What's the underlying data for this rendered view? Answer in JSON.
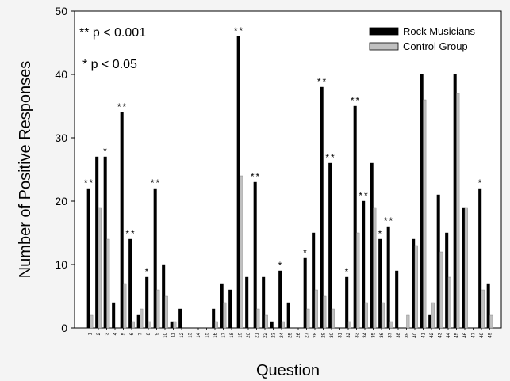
{
  "chart_data": {
    "type": "bar",
    "title": "",
    "xlabel": "Question",
    "ylabel": "Number of Positive Responses",
    "ylim": [
      0,
      50
    ],
    "yticks": [
      0,
      10,
      20,
      30,
      40,
      50
    ],
    "grid": false,
    "legend_position": "top-right",
    "categories": [
      "1",
      "2",
      "3",
      "4",
      "5",
      "6",
      "7",
      "8",
      "9",
      "10",
      "11",
      "12",
      "13",
      "14",
      "15",
      "16",
      "17",
      "18",
      "19",
      "20",
      "21",
      "22",
      "23",
      "24",
      "25",
      "26",
      "27",
      "28",
      "29",
      "30",
      "31",
      "32",
      "33",
      "34",
      "35",
      "36",
      "37",
      "38",
      "39",
      "40",
      "41",
      "42",
      "43",
      "44",
      "45",
      "46",
      "47",
      "48",
      "49"
    ],
    "series": [
      {
        "name": "Rock Musicians",
        "color": "#000000",
        "values": [
          22,
          27,
          27,
          4,
          34,
          14,
          2,
          8,
          22,
          10,
          1,
          3,
          0,
          0,
          0,
          3,
          7,
          6,
          46,
          8,
          23,
          8,
          1,
          9,
          4,
          0,
          11,
          15,
          38,
          26,
          0,
          8,
          35,
          20,
          26,
          14,
          16,
          9,
          0,
          14,
          40,
          2,
          21,
          15,
          40,
          19,
          0,
          22,
          7
        ]
      },
      {
        "name": "Control Group",
        "color": "#c0c0c0",
        "values": [
          2,
          19,
          14,
          0,
          7,
          1,
          3,
          1,
          6,
          5,
          1,
          0,
          0,
          0,
          0,
          1,
          4,
          0,
          24,
          0,
          3,
          2,
          0,
          1,
          0,
          0,
          3,
          6,
          5,
          3,
          0,
          1,
          15,
          4,
          19,
          4,
          1,
          0,
          2,
          13,
          36,
          4,
          12,
          8,
          37,
          19,
          0,
          6,
          2
        ]
      }
    ],
    "significance": [
      "**",
      "",
      "*",
      "",
      "**",
      "**",
      "",
      "*",
      "**",
      "",
      "",
      "",
      "",
      "",
      "",
      "",
      "",
      "",
      "**",
      "",
      "**",
      "",
      "",
      "*",
      "",
      "",
      "*",
      "",
      "**",
      "**",
      "",
      "*",
      "**",
      "**",
      "",
      "*",
      "**",
      "",
      "",
      "",
      "",
      "",
      "",
      "",
      "",
      "",
      "",
      "*",
      ""
    ],
    "annotations": [
      "** p < 0.001",
      "* p < 0.05"
    ]
  }
}
